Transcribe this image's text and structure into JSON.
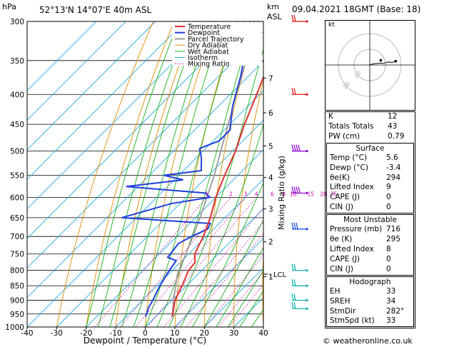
{
  "station": "52°13'N  14°07'E  40m  ASL",
  "datetime": "09.04.2021  18GMT  (Base: 18)",
  "footer": "© weatheronline.co.uk",
  "axis": {
    "pressure_unit": "hPa",
    "km_unit": "km",
    "asl": "ASL",
    "xlabel": "Dewpoint / Temperature (°C)",
    "mixing_ylabel": "Mixing Ratio (g/kg)",
    "lcl": "LCL"
  },
  "legend": [
    "Temperature",
    "Dewpoint",
    "Parcel Trajectory",
    "Dry Adiabat",
    "Wet Adiabat",
    "Isotherm",
    "Mixing Ratio"
  ],
  "colors": {
    "temperature": "#e03030",
    "dewpoint": "#1f3fdd",
    "parcel": "#999999",
    "dry_adiabat": "#e08a00",
    "wet_adiabat": "#18b018",
    "isotherm": "#22aadd",
    "mixing_ratio": "#d000b0",
    "wind_barb_red": "#dd1111",
    "wind_barb_purple": "#8800cc",
    "wind_barb_blue": "#1144dd",
    "wind_barb_cyan": "#00aaaa"
  },
  "chart_data": {
    "type": "line",
    "title": "",
    "pressure_levels": [
      300,
      350,
      400,
      450,
      500,
      550,
      600,
      650,
      700,
      750,
      800,
      850,
      900,
      950,
      1000
    ],
    "temp_ticks": [
      -40,
      -30,
      -20,
      -10,
      0,
      10,
      20,
      30,
      40
    ],
    "xlim": [
      -40,
      40
    ],
    "ylim": [
      1000,
      300
    ],
    "km_ticks": [
      {
        "label": "1",
        "p": 820
      },
      {
        "label": "2",
        "p": 715
      },
      {
        "label": "3",
        "p": 628
      },
      {
        "label": "4",
        "p": 555
      },
      {
        "label": "5",
        "p": 490
      },
      {
        "label": "6",
        "p": 430
      },
      {
        "label": "7",
        "p": 375
      }
    ],
    "lcl_pressure": 812,
    "mixing_ratio_labels": [
      "1",
      "2",
      "3",
      "4",
      "6",
      "8",
      "10",
      "15",
      "20",
      "25"
    ],
    "mixing_ratio_values": [
      1,
      2,
      3,
      4,
      6,
      8,
      10,
      15,
      20,
      25
    ],
    "temperature": [
      {
        "p": 960,
        "t": 5.6
      },
      {
        "p": 925,
        "t": 3.0
      },
      {
        "p": 900,
        "t": 1.0
      },
      {
        "p": 850,
        "t": -1.5
      },
      {
        "p": 800,
        "t": -4.5
      },
      {
        "p": 775,
        "t": -5.0
      },
      {
        "p": 750,
        "t": -8.0
      },
      {
        "p": 700,
        "t": -11.0
      },
      {
        "p": 650,
        "t": -15.0
      },
      {
        "p": 600,
        "t": -20.0
      },
      {
        "p": 550,
        "t": -24.5
      },
      {
        "p": 500,
        "t": -29.0
      },
      {
        "p": 450,
        "t": -35.0
      },
      {
        "p": 400,
        "t": -41.0
      },
      {
        "p": 350,
        "t": -48.0
      },
      {
        "p": 300,
        "t": -55.0
      }
    ],
    "dewpoint": [
      {
        "p": 960,
        "t": -3.4
      },
      {
        "p": 925,
        "t": -5.5
      },
      {
        "p": 900,
        "t": -6.5
      },
      {
        "p": 850,
        "t": -9.0
      },
      {
        "p": 800,
        "t": -11.0
      },
      {
        "p": 770,
        "t": -12.0
      },
      {
        "p": 760,
        "t": -16.0
      },
      {
        "p": 720,
        "t": -17.0
      },
      {
        "p": 700,
        "t": -15.0
      },
      {
        "p": 680,
        "t": -12.0
      },
      {
        "p": 665,
        "t": -13.0
      },
      {
        "p": 650,
        "t": -45.0
      },
      {
        "p": 615,
        "t": -33.0
      },
      {
        "p": 600,
        "t": -22.0
      },
      {
        "p": 590,
        "t": -25.0
      },
      {
        "p": 575,
        "t": -54.0
      },
      {
        "p": 560,
        "t": -37.0
      },
      {
        "p": 550,
        "t": -45.0
      },
      {
        "p": 540,
        "t": -34.0
      },
      {
        "p": 515,
        "t": -38.0
      },
      {
        "p": 495,
        "t": -42.0
      },
      {
        "p": 480,
        "t": -38.0
      },
      {
        "p": 460,
        "t": -38.0
      },
      {
        "p": 420,
        "t": -45.0
      },
      {
        "p": 370,
        "t": -53.0
      },
      {
        "p": 335,
        "t": -60.0
      },
      {
        "p": 300,
        "t": -68.0
      }
    ],
    "parcel": [
      {
        "p": 960,
        "t": 5.6
      },
      {
        "p": 900,
        "t": 0.5
      },
      {
        "p": 812,
        "t": -7.0
      },
      {
        "p": 750,
        "t": -11.0
      },
      {
        "p": 700,
        "t": -14.5
      },
      {
        "p": 650,
        "t": -18.5
      },
      {
        "p": 600,
        "t": -23.0
      },
      {
        "p": 550,
        "t": -28.0
      },
      {
        "p": 500,
        "t": -34.0
      },
      {
        "p": 450,
        "t": -40.5
      },
      {
        "p": 400,
        "t": -48.0
      },
      {
        "p": 350,
        "t": -56.0
      },
      {
        "p": 300,
        "t": -65.0
      }
    ]
  },
  "hodograph": {
    "label": "kt",
    "ring_labels": [
      "10",
      "20"
    ],
    "points": [
      [
        0,
        0
      ],
      [
        3,
        3
      ],
      [
        6,
        4
      ],
      [
        10,
        5
      ],
      [
        14,
        6
      ],
      [
        17,
        5
      ],
      [
        21,
        8
      ],
      [
        24,
        10
      ],
      [
        27,
        8
      ],
      [
        30,
        9
      ],
      [
        33,
        12
      ]
    ]
  },
  "indices": [
    {
      "label": "K",
      "value": "12"
    },
    {
      "label": "Totals Totals",
      "value": "43"
    },
    {
      "label": "PW (cm)",
      "value": "0.79"
    }
  ],
  "surface": {
    "title": "Surface",
    "rows": [
      {
        "label": "Temp (°C)",
        "value": "5.6"
      },
      {
        "label": "Dewp (°C)",
        "value": "-3.4"
      },
      {
        "label": "θe(K)",
        "value": "294"
      },
      {
        "label": "Lifted Index",
        "value": "9"
      },
      {
        "label": "CAPE (J)",
        "value": "0"
      },
      {
        "label": "CIN (J)",
        "value": "0"
      }
    ]
  },
  "most_unstable": {
    "title": "Most Unstable",
    "rows": [
      {
        "label": "Pressure (mb)",
        "value": "716"
      },
      {
        "label": "θe (K)",
        "value": "295"
      },
      {
        "label": "Lifted Index",
        "value": "8"
      },
      {
        "label": "CAPE (J)",
        "value": "0"
      },
      {
        "label": "CIN (J)",
        "value": "0"
      }
    ]
  },
  "hodograph_table": {
    "title": "Hodograph",
    "rows": [
      {
        "label": "EH",
        "value": "33"
      },
      {
        "label": "SREH",
        "value": "34"
      },
      {
        "label": "StmDir",
        "value": "282°"
      },
      {
        "label": "StmSpd (kt)",
        "value": "33"
      }
    ]
  },
  "wind_barbs": [
    {
      "p": 300,
      "color": "wind_barb_red",
      "flags": 2
    },
    {
      "p": 400,
      "color": "wind_barb_red",
      "flags": 2
    },
    {
      "p": 500,
      "color": "wind_barb_purple",
      "flags": 4
    },
    {
      "p": 590,
      "color": "wind_barb_purple",
      "flags": 4
    },
    {
      "p": 680,
      "color": "wind_barb_blue",
      "flags": 3
    },
    {
      "p": 800,
      "color": "wind_barb_cyan",
      "flags": 2
    },
    {
      "p": 850,
      "color": "wind_barb_cyan",
      "flags": 2
    },
    {
      "p": 900,
      "color": "wind_barb_cyan",
      "flags": 2
    },
    {
      "p": 930,
      "color": "wind_barb_cyan",
      "flags": 2
    }
  ]
}
